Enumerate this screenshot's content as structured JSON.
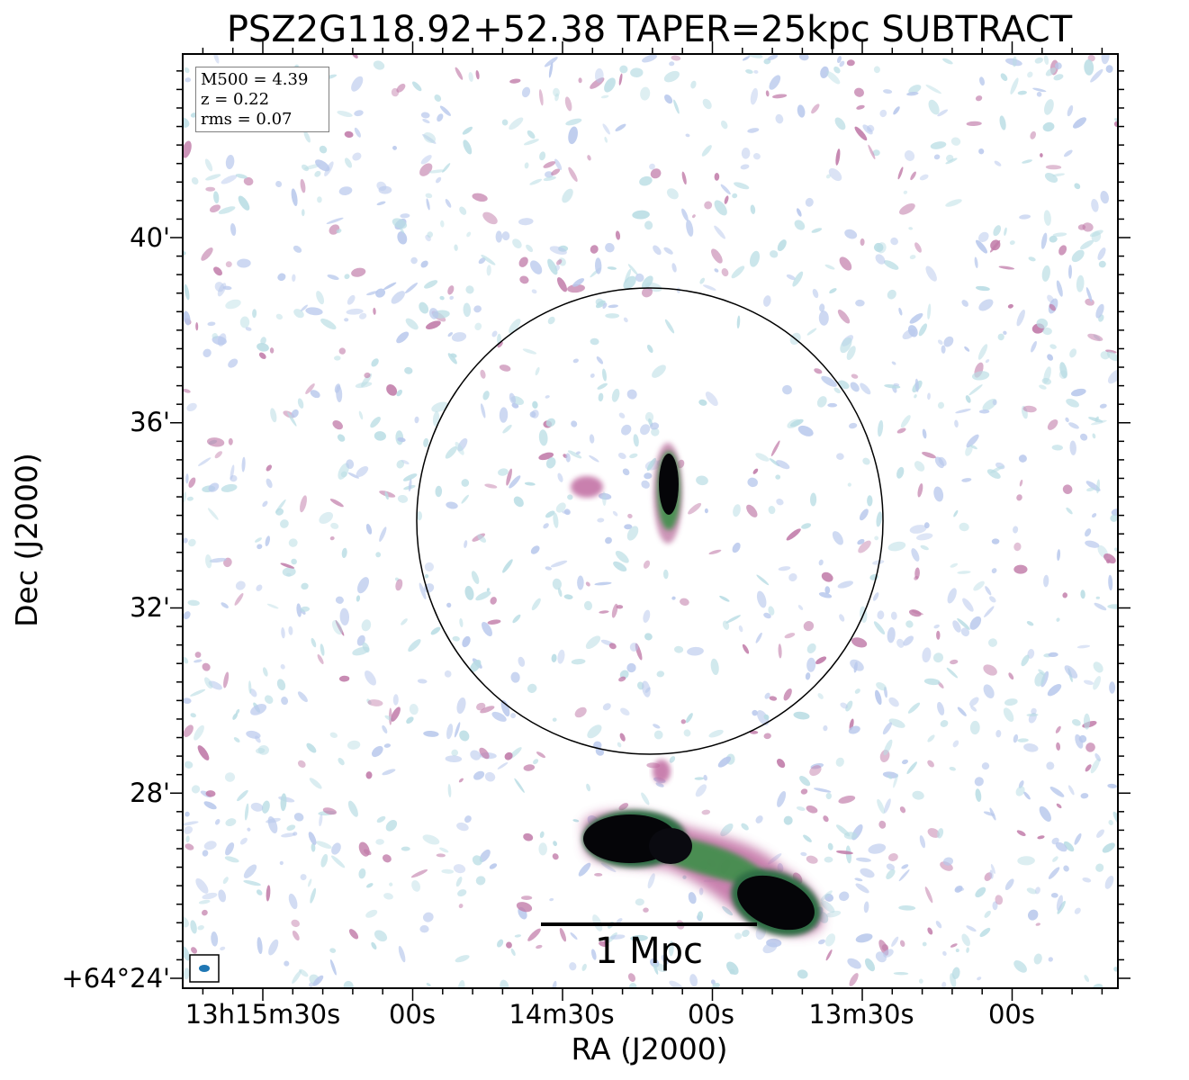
{
  "title": "PSZ2G118.92+52.38 TAPER=25kpc SUBTRACT",
  "axes": {
    "xlabel": "RA (J2000)",
    "ylabel": "Dec (J2000)",
    "y_ticks": [
      "40'",
      "36'",
      "32'",
      "28'",
      "+64°24'"
    ],
    "x_ticks": [
      "13h15m30s",
      "00s",
      "14m30s",
      "00s",
      "13m30s",
      "00s"
    ]
  },
  "info": {
    "mass": "M500 = 4.39",
    "redshift": "z = 0.22",
    "rms": "rms = 0.07"
  },
  "scalebar": {
    "label": "1 Mpc"
  },
  "colors": {
    "faint_emission": "#b8c8ec",
    "faint_emission_alt": "#b9dde4",
    "mid_emission": "#c07aa8",
    "bright_emission": "#000000",
    "edge_emission": "#3d8f4a",
    "circle": "#000000",
    "beam": "#1f77b4"
  },
  "features": {
    "circle": "R500 aperture circle",
    "central_source": "compact central radio source",
    "southern_source": "extended double-lobed radio galaxy",
    "beam_icon": "beam-ellipse-icon"
  }
}
